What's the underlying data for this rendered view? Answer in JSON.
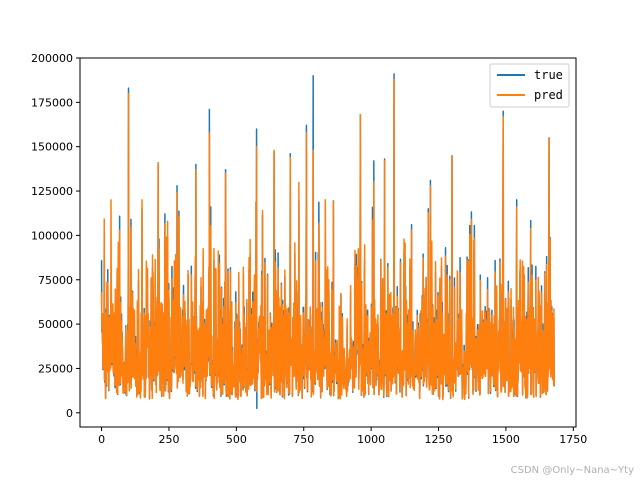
{
  "chart_data": {
    "type": "line",
    "title": "",
    "xlabel": "",
    "ylabel": "",
    "xlim": [
      -80,
      1760
    ],
    "ylim": [
      -8000,
      200000
    ],
    "x_ticks": [
      0,
      250,
      500,
      750,
      1000,
      1250,
      1500,
      1750
    ],
    "y_ticks": [
      0,
      25000,
      50000,
      75000,
      100000,
      125000,
      150000,
      175000,
      200000
    ],
    "n_points": 1680,
    "grid": false,
    "legend_position": "top-right",
    "series": [
      {
        "name": "true",
        "color": "#1f77b4",
        "peaks": [
          [
            0,
            86000
          ],
          [
            35,
            58000
          ],
          [
            100,
            183000
          ],
          [
            150,
            115000
          ],
          [
            210,
            140000
          ],
          [
            280,
            128000
          ],
          [
            350,
            140000
          ],
          [
            400,
            171000
          ],
          [
            460,
            137000
          ],
          [
            575,
            160000
          ],
          [
            640,
            147000
          ],
          [
            700,
            146000
          ],
          [
            760,
            162000
          ],
          [
            785,
            190000
          ],
          [
            830,
            118000
          ],
          [
            960,
            168000
          ],
          [
            1010,
            142000
          ],
          [
            1050,
            143000
          ],
          [
            1085,
            191000
          ],
          [
            1150,
            106000
          ],
          [
            1220,
            131000
          ],
          [
            1300,
            145000
          ],
          [
            1490,
            170000
          ],
          [
            1540,
            120000
          ],
          [
            1660,
            155000
          ]
        ]
      },
      {
        "name": "pred",
        "color": "#ff7f0e",
        "peaks": [
          [
            0,
            68000
          ],
          [
            35,
            120000
          ],
          [
            100,
            180000
          ],
          [
            150,
            120000
          ],
          [
            210,
            141000
          ],
          [
            280,
            124000
          ],
          [
            350,
            137000
          ],
          [
            400,
            158000
          ],
          [
            460,
            135000
          ],
          [
            575,
            150000
          ],
          [
            640,
            148000
          ],
          [
            700,
            144000
          ],
          [
            760,
            158000
          ],
          [
            785,
            148000
          ],
          [
            830,
            120000
          ],
          [
            960,
            168000
          ],
          [
            1010,
            130000
          ],
          [
            1050,
            142000
          ],
          [
            1085,
            188000
          ],
          [
            1150,
            103000
          ],
          [
            1220,
            128000
          ],
          [
            1300,
            145000
          ],
          [
            1490,
            167000
          ],
          [
            1540,
            116000
          ],
          [
            1660,
            155000
          ]
        ]
      }
    ]
  },
  "watermark": "CSDN @Only~Nana~Yty"
}
